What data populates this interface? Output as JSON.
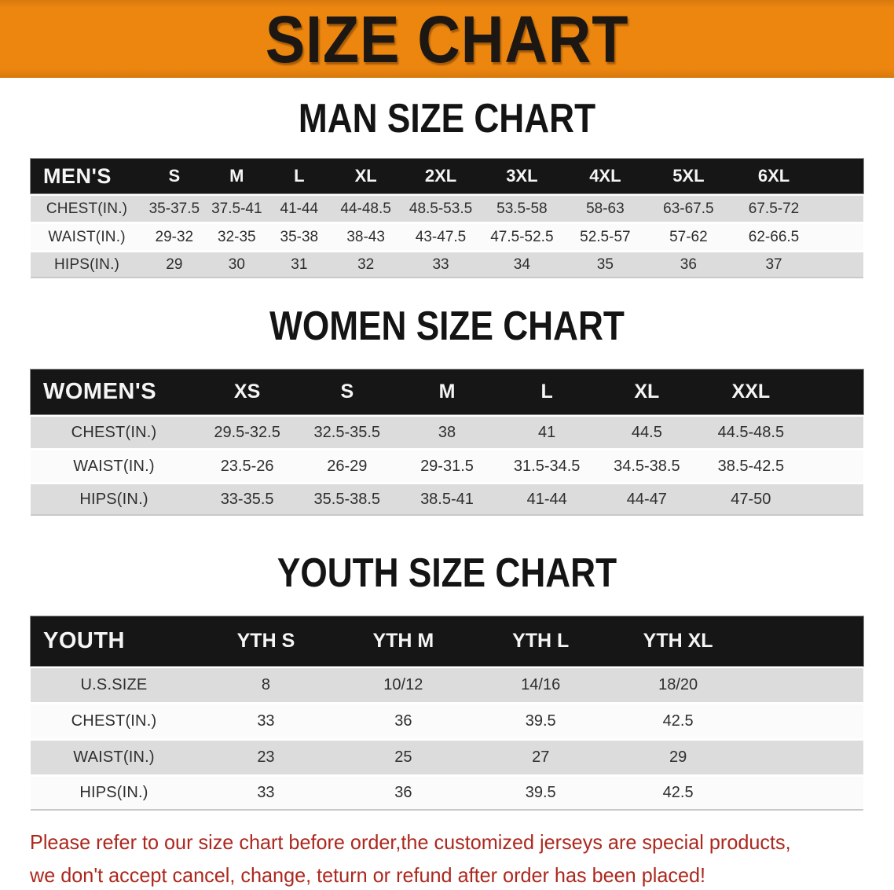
{
  "banner": {
    "title": "SIZE CHART"
  },
  "colors": {
    "banner_bg": "#EC860F",
    "banner_edge": "#D8790E",
    "bar_bg": "#161616",
    "row_shade": "#DCDCDC",
    "note_red": "#AC281E"
  },
  "sections": [
    {
      "heading": "MAN SIZE CHART",
      "header_label": "MEN'S",
      "columns": [
        "S",
        "M",
        "L",
        "XL",
        "2XL",
        "3XL",
        "4XL",
        "5XL",
        "6XL"
      ],
      "rows": [
        {
          "label": "CHEST(IN.)",
          "values": [
            "35-37.5",
            "37.5-41",
            "41-44",
            "44-48.5",
            "48.5-53.5",
            "53.5-58",
            "58-63",
            "63-67.5",
            "67.5-72"
          ]
        },
        {
          "label": "WAIST(IN.)",
          "values": [
            "29-32",
            "32-35",
            "35-38",
            "38-43",
            "43-47.5",
            "47.5-52.5",
            "52.5-57",
            "57-62",
            "62-66.5"
          ]
        },
        {
          "label": "HIPS(IN.)",
          "values": [
            "29",
            "30",
            "31",
            "32",
            "33",
            "34",
            "35",
            "36",
            "37"
          ]
        }
      ]
    },
    {
      "heading": "WOMEN SIZE CHART",
      "header_label": "WOMEN'S",
      "columns": [
        "XS",
        "S",
        "M",
        "L",
        "XL",
        "XXL"
      ],
      "rows": [
        {
          "label": "CHEST(IN.)",
          "values": [
            "29.5-32.5",
            "32.5-35.5",
            "38",
            "41",
            "44.5",
            "44.5-48.5"
          ]
        },
        {
          "label": "WAIST(IN.)",
          "values": [
            "23.5-26",
            "26-29",
            "29-31.5",
            "31.5-34.5",
            "34.5-38.5",
            "38.5-42.5"
          ]
        },
        {
          "label": "HIPS(IN.)",
          "values": [
            "33-35.5",
            "35.5-38.5",
            "38.5-41",
            "41-44",
            "44-47",
            "47-50"
          ]
        }
      ]
    },
    {
      "heading": "YOUTH SIZE CHART",
      "header_label": "YOUTH",
      "columns": [
        "YTH S",
        "YTH M",
        "YTH L",
        "YTH XL"
      ],
      "rows": [
        {
          "label": "U.S.SIZE",
          "values": [
            "8",
            "10/12",
            "14/16",
            "18/20"
          ]
        },
        {
          "label": "CHEST(IN.)",
          "values": [
            "33",
            "36",
            "39.5",
            "42.5"
          ]
        },
        {
          "label": "WAIST(IN.)",
          "values": [
            "23",
            "25",
            "27",
            "29"
          ]
        },
        {
          "label": "HIPS(IN.)",
          "values": [
            "33",
            "36",
            "39.5",
            "42.5"
          ]
        }
      ]
    }
  ],
  "footer": {
    "line1": "Please refer to our size chart before order,the customized jerseys are special products,",
    "line2": "we don't accept cancel, change, teturn or refund after order has been placed!"
  }
}
